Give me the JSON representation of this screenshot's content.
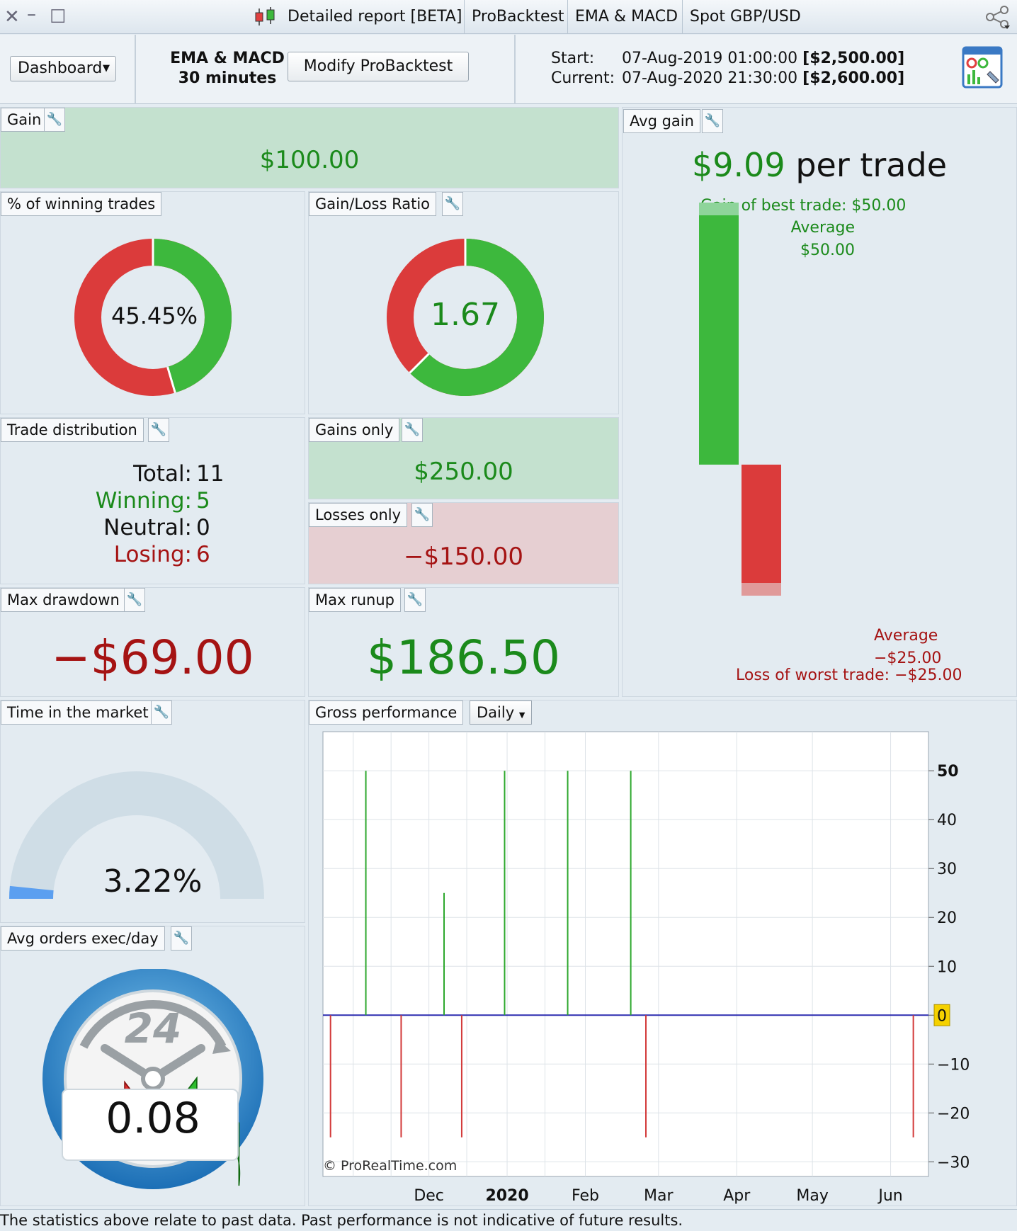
{
  "window": {
    "close": "✕",
    "minimize": "–",
    "maximize": "☐",
    "tabs": [
      "Detailed report [BETA]",
      "ProBacktest",
      "EMA & MACD",
      "Spot GBP/USD"
    ]
  },
  "toolbar": {
    "dashboard_label": "Dashboard",
    "strategy_name": "EMA & MACD",
    "timeframe": "30 minutes",
    "modify_label": "Modify ProBacktest",
    "start_label": "Start:",
    "start_date": "07-Aug-2019 01:00:00",
    "start_capital": "[$2,500.00]",
    "current_label": "Current:",
    "current_date": "07-Aug-2020 21:30:00",
    "current_capital": "[$2,600.00]"
  },
  "gain": {
    "title": "Gain",
    "value": "$100.00"
  },
  "winning": {
    "title": "% of winning trades",
    "value": "45.45%",
    "fraction": 0.4545
  },
  "ratio": {
    "title": "Gain/Loss Ratio",
    "value": "1.67",
    "fraction": 0.625
  },
  "avg_gain": {
    "title": "Avg gain",
    "value": "$9.09",
    "suffix": "per trade",
    "best_label": "Gain of best trade: $50.00",
    "avg_gain_label": "Average",
    "avg_gain_value": "$50.00",
    "avg_loss_label": "Average",
    "avg_loss_value": "−$25.00",
    "worst_label": "Loss of worst trade: −$25.00",
    "best_trade": 50,
    "worst_trade": -25,
    "colors": {
      "gain": "#3db83d",
      "loss": "#db3b3b"
    }
  },
  "distribution": {
    "title": "Trade distribution",
    "total_label": "Total:",
    "total": "11",
    "winning_label": "Winning:",
    "winning": "5",
    "neutral_label": "Neutral:",
    "neutral": "0",
    "losing_label": "Losing:",
    "losing": "6"
  },
  "gains_only": {
    "title": "Gains only",
    "value": "$250.00"
  },
  "losses_only": {
    "title": "Losses only",
    "value": "−$150.00"
  },
  "max_drawdown": {
    "title": "Max drawdown",
    "value": "−$69.00"
  },
  "max_runup": {
    "title": "Max runup",
    "value": "$186.50"
  },
  "time_market": {
    "title": "Time in the market",
    "value": "3.22%",
    "fraction": 0.0322
  },
  "avg_orders": {
    "title": "Avg orders exec/day",
    "value": "0.08",
    "dial_label": "24"
  },
  "gross": {
    "title": "Gross performance",
    "period": "Daily",
    "copyright": "© ProRealTime.com"
  },
  "chart_data": {
    "type": "bar",
    "title": "Gross performance",
    "x_labels": [
      "Dec",
      "2020",
      "Feb",
      "Mar",
      "Apr",
      "May",
      "Jun"
    ],
    "y_ticks": [
      "50",
      "40",
      "30",
      "20",
      "10",
      "0",
      "−10",
      "−20",
      "−30"
    ],
    "ylim": [
      -33,
      58
    ],
    "grid": true,
    "series": [
      {
        "points": [
          {
            "date": "2019-10-23",
            "value": -25
          },
          {
            "date": "2019-11-06",
            "value": 50
          },
          {
            "date": "2019-11-20",
            "value": -25
          },
          {
            "date": "2019-12-07",
            "value": 25
          },
          {
            "date": "2019-12-14",
            "value": -25
          },
          {
            "date": "2019-12-31",
            "value": 50
          },
          {
            "date": "2020-01-25",
            "value": 50
          },
          {
            "date": "2020-02-19",
            "value": 50
          },
          {
            "date": "2020-02-25",
            "value": -25
          },
          {
            "date": "2020-06-10",
            "value": -25
          }
        ]
      }
    ]
  },
  "footer": "The statistics above relate to past data. Past performance is not indicative of future results."
}
